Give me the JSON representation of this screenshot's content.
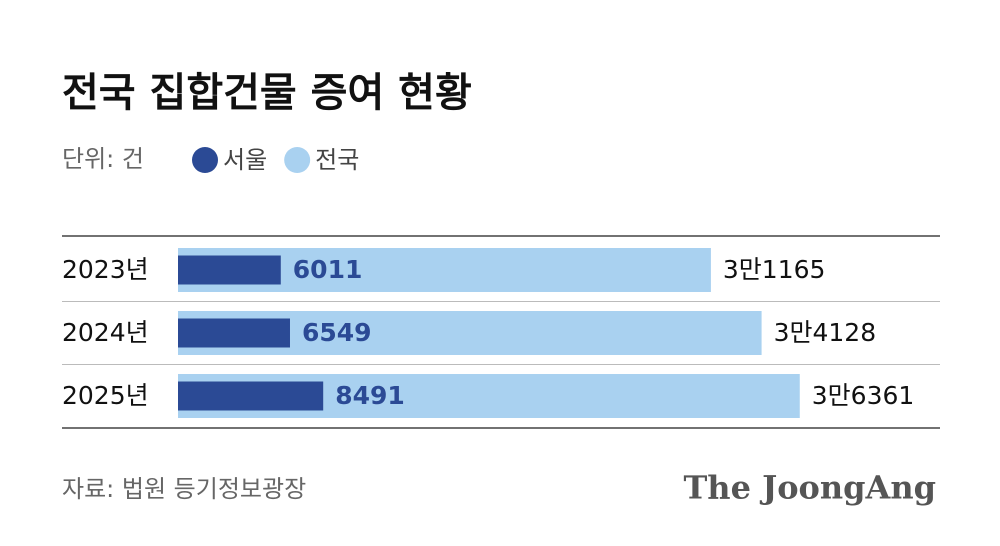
{
  "chart_data": {
    "type": "bar",
    "orientation": "horizontal",
    "overlap": true,
    "title": "전국 집합건물 증여 현황",
    "unit": "단위: 건",
    "source": "자료: 법원 등기정보광장",
    "brand": "The JoongAng",
    "categories": [
      "2023년",
      "2024년",
      "2025년"
    ],
    "series": [
      {
        "name": "전국",
        "color": "#a9d1f0",
        "values": [
          31165,
          34128,
          36361
        ],
        "value_labels": [
          "3만1165",
          "3만4128",
          "3만6361"
        ]
      },
      {
        "name": "서울",
        "color": "#2b4a95",
        "values": [
          6011,
          6549,
          8491
        ]
      }
    ]
  }
}
